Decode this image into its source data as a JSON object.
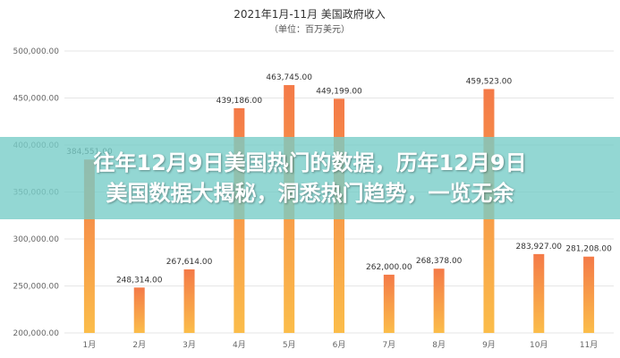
{
  "chart_data": {
    "type": "bar",
    "title": "2021年1月-11月 美国政府收入",
    "subtitle": "（单位：百万美元）",
    "categories": [
      "1月",
      "2月",
      "3月",
      "4月",
      "5月",
      "6月",
      "7月",
      "8月",
      "9月",
      "10月",
      "11月"
    ],
    "values": [
      384551,
      248314,
      267614,
      439186,
      463745,
      449199,
      262000,
      268378,
      459523,
      283927,
      281208
    ],
    "data_labels": [
      "384,551.00",
      "248,314.00",
      "267,614.00",
      "439,186.00",
      "463,745.00",
      "449,199.00",
      "262,000.00",
      "268,378.00",
      "459,523.00",
      "283,927.00",
      "281,208.00"
    ],
    "yticks": [
      200000,
      250000,
      300000,
      350000,
      400000,
      450000,
      500000
    ],
    "ytick_labels": [
      "200,000.00",
      "250,000.00",
      "300,000.00",
      "350,000.00",
      "400,000.00",
      "450,000.00",
      "500,000.00"
    ],
    "ylim": [
      200000,
      500000
    ],
    "grid": true,
    "bar_color_top": "#f47a48",
    "bar_color_bottom": "#fbbd4a"
  },
  "overlay": {
    "line1": "往年12月9日美国热门的数据，历年12月9日",
    "line2": "美国数据大揭秘，洞悉热门趋势，一览无余"
  }
}
